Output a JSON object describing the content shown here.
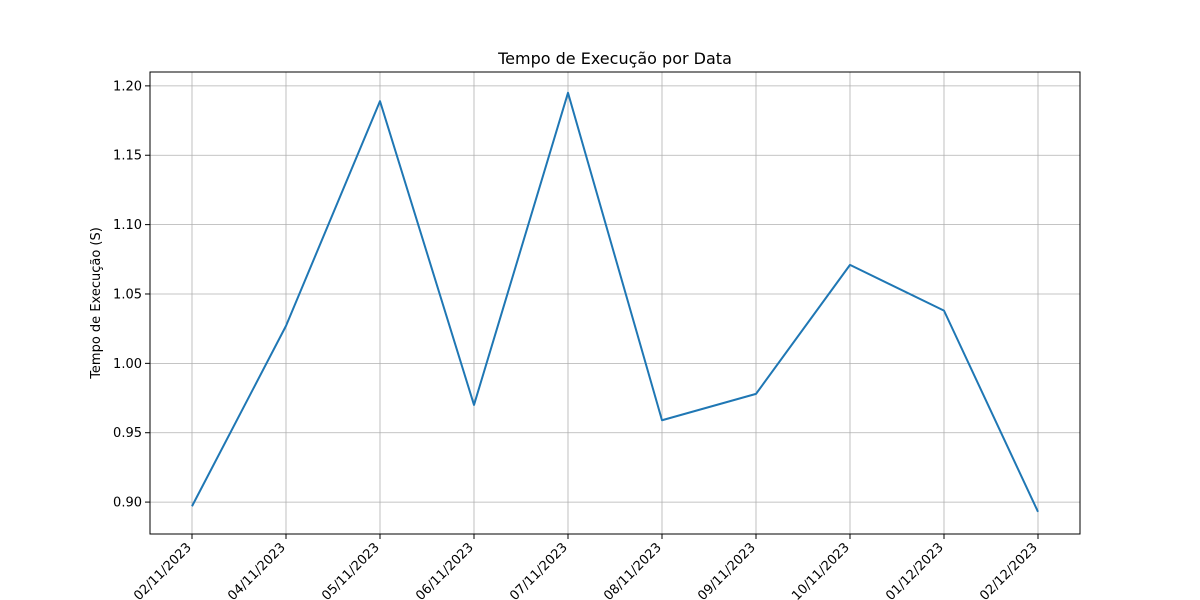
{
  "chart_data": {
    "type": "line",
    "title": "Tempo de Execução por Data",
    "xlabel": "",
    "ylabel": "Tempo de Execução (S)",
    "categories": [
      "02/11/2023",
      "04/11/2023",
      "05/11/2023",
      "06/11/2023",
      "07/11/2023",
      "08/11/2023",
      "09/11/2023",
      "10/11/2023",
      "01/12/2023",
      "02/12/2023"
    ],
    "series": [
      {
        "values": [
          0.897,
          1.027,
          1.189,
          0.97,
          1.195,
          0.959,
          0.978,
          1.071,
          1.038,
          0.893
        ],
        "color": "#1f77b4"
      }
    ],
    "ylim": [
      0.877,
      1.21
    ],
    "yticks": [
      0.9,
      0.95,
      1.0,
      1.05,
      1.1,
      1.15,
      1.2
    ],
    "ytick_labels": [
      "0.90",
      "0.95",
      "1.00",
      "1.05",
      "1.10",
      "1.15",
      "1.20"
    ],
    "grid": true,
    "legend": "none"
  }
}
